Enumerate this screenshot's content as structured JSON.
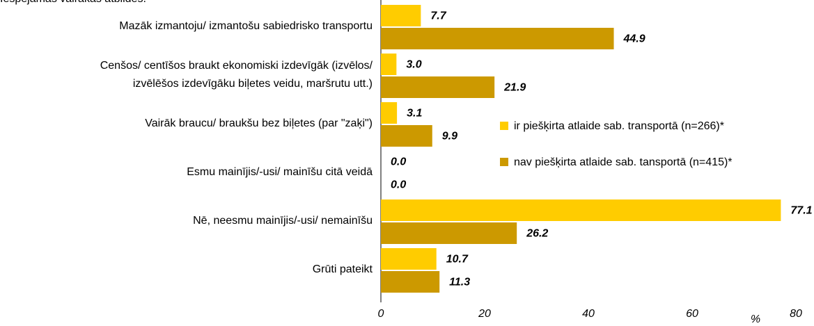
{
  "chart_data": {
    "type": "hbar",
    "subtitle": "Iespējamas vairākas atbildes.",
    "categories": [
      "Mazāk izmantoju/ izmantošu sabiedrisko transportu",
      "Cenšos/ centīšos braukt ekonomiski izdevīgāk (izvēlos/\nizvēlēšos izdevīgāku biļetes veidu, maršrutu utt.)",
      "Vairāk braucu/ braukšu bez biļetes (par \"zaķi\")",
      "Esmu mainījis/-usi/ mainīšu citā veidā",
      "Nē, neesmu mainījis/-usi/ nemainīšu",
      "Grūti pateikt"
    ],
    "series": [
      {
        "name": "ir piešķirta atlaide sab. transportā (n=266)*",
        "color": "#ffcc00",
        "values": [
          7.7,
          3.0,
          3.1,
          0.0,
          77.1,
          10.7
        ],
        "value_labels": [
          "7.7",
          "3.0",
          "3.1",
          "0.0",
          "77.1",
          "10.7"
        ]
      },
      {
        "name": "nav piešķirta atlaide sab. tansportā (n=415)*",
        "color": "#cc9900",
        "values": [
          44.9,
          21.9,
          9.9,
          0.0,
          26.2,
          11.3
        ],
        "value_labels": [
          "44.9",
          "21.9",
          "9.9",
          "0.0",
          "26.2",
          "11.3"
        ]
      }
    ],
    "xlabel": "%",
    "xlim": [
      0,
      80
    ],
    "xticks": [
      0,
      20,
      40,
      60,
      80
    ],
    "grid": false,
    "legend": "right"
  }
}
